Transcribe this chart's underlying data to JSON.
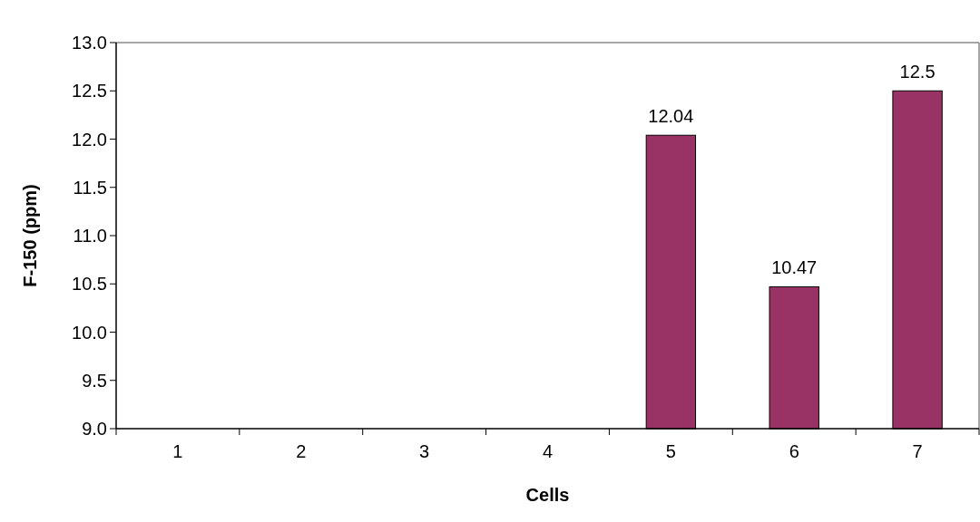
{
  "chart_data": {
    "type": "bar",
    "xlabel": "Cells",
    "ylabel": "F-150 (ppm)",
    "categories": [
      "1",
      "2",
      "3",
      "4",
      "5",
      "6",
      "7"
    ],
    "values": [
      null,
      null,
      null,
      null,
      12.04,
      10.47,
      12.5
    ],
    "color": "#993366",
    "ylim": [
      9,
      13
    ],
    "yticks": [
      {
        "value": 9,
        "label": "9.0"
      },
      {
        "value": 9.5,
        "label": "9.5"
      },
      {
        "value": 10,
        "label": "10.0"
      },
      {
        "value": 10.5,
        "label": "10.5"
      },
      {
        "value": 11,
        "label": "11.0"
      },
      {
        "value": 11.5,
        "label": "11.5"
      },
      {
        "value": 12,
        "label": "12.0"
      },
      {
        "value": 12.5,
        "label": "12.5"
      },
      {
        "value": 13,
        "label": "13.0"
      }
    ],
    "data_labels": true
  }
}
